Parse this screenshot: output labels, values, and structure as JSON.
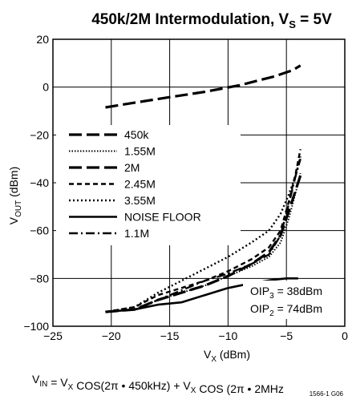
{
  "chart_data": {
    "type": "line",
    "title": {
      "main": "450k/2M Intermodulation, V",
      "sub": "S",
      "tail": " = 5V"
    },
    "xlabel": {
      "main": "V",
      "sub": "X",
      "tail": " (dBm)"
    },
    "ylabel": {
      "main": "V",
      "sub": "OUT",
      "tail": " (dBm)"
    },
    "xlim": [
      -25,
      0
    ],
    "ylim": [
      -100,
      20
    ],
    "xticks": [
      -25,
      -20,
      -15,
      -10,
      -5,
      0
    ],
    "yticks": [
      -100,
      -80,
      -60,
      -40,
      -20,
      0,
      20
    ],
    "xtick_labels": [
      "−25",
      "−20",
      "−15",
      "−10",
      "−5",
      "0"
    ],
    "ytick_labels": [
      "−100",
      "−80",
      "−60",
      "−40",
      "−20",
      "0",
      "20"
    ],
    "grid": true,
    "legend_position": "left",
    "series": [
      {
        "name": "450k",
        "dash": "long-dash",
        "width": 3.2,
        "x": [
          -20.5,
          -18,
          -15,
          -12,
          -9,
          -6,
          -4.5,
          -3.8
        ],
        "y": [
          -8.5,
          -6.5,
          -4.2,
          -2.0,
          0.8,
          4.5,
          7.0,
          9.0
        ]
      },
      {
        "name": "1.55M",
        "dash": "dotted",
        "width": 2,
        "x": [
          -20.5,
          -18,
          -16,
          -14,
          -12,
          -10,
          -8,
          -6.5,
          -5.5,
          -4.8,
          -4.2,
          -3.8
        ],
        "y": [
          -94,
          -93,
          -89,
          -86,
          -83,
          -79,
          -75,
          -71,
          -65,
          -55,
          -44,
          -36
        ]
      },
      {
        "name": "2M",
        "dash": "long-dash",
        "width": 3.2,
        "x": [
          -20.5,
          -18,
          -16,
          -14,
          -12,
          -10,
          -8,
          -6.5,
          -5.5,
          -4.8,
          -4.2,
          -3.8
        ],
        "y": [
          -94,
          -93,
          -89,
          -86,
          -83,
          -79,
          -74,
          -69,
          -62,
          -52,
          -43,
          -37
        ]
      },
      {
        "name": "2.45M",
        "dash": "dashed",
        "width": 2.4,
        "x": [
          -20.5,
          -18,
          -16,
          -14,
          -12,
          -10,
          -8,
          -6.5,
          -5.5,
          -4.8,
          -4.2,
          -3.8
        ],
        "y": [
          -94,
          -92,
          -87,
          -84,
          -81,
          -77,
          -72,
          -67,
          -60,
          -48,
          -36,
          -26
        ]
      },
      {
        "name": "3.55M",
        "dash": "dotted-fine",
        "width": 2.4,
        "x": [
          -20.5,
          -18,
          -16,
          -14,
          -12,
          -10,
          -8,
          -6.5,
          -5.5,
          -4.8,
          -4.2,
          -3.8
        ],
        "y": [
          -94,
          -92,
          -86,
          -81,
          -76,
          -71,
          -65,
          -60,
          -53,
          -45,
          -37,
          -29
        ]
      },
      {
        "name": "NOISE FLOOR",
        "dash": "solid",
        "width": 2.6,
        "x": [
          -20.5,
          -18,
          -16,
          -14,
          -12,
          -10,
          -8,
          -6,
          -5,
          -4
        ],
        "y": [
          -94,
          -93,
          -91,
          -90,
          -87,
          -84,
          -82,
          -80.5,
          -80,
          -80
        ]
      },
      {
        "name": "1.1M",
        "dash": "dash-dot",
        "width": 2.4,
        "x": [
          -20.5,
          -18,
          -16,
          -14,
          -12,
          -10,
          -8,
          -6.5,
          -5.5,
          -4.8,
          -4.2,
          -3.8
        ],
        "y": [
          -94,
          -93,
          -89,
          -85,
          -81,
          -78,
          -74,
          -70,
          -62,
          -49,
          -37,
          -30
        ]
      }
    ],
    "annotations": [
      {
        "main": "OIP",
        "sub": "3",
        "tail": " = 38dBm"
      },
      {
        "main": "OIP",
        "sub": "2",
        "tail": " = 74dBm"
      }
    ],
    "footer": {
      "text": "V _IN = V_X COS(2π • 450kHz) + V_X COS (2π • 2MHz",
      "parts": [
        {
          "t": "V"
        },
        {
          "sub": "IN"
        },
        {
          "t": " = V"
        },
        {
          "sub": "X"
        },
        {
          "t": " COS(2π • 450kHz) + V"
        },
        {
          "sub": "X"
        },
        {
          "t": " COS (2π • 2MHz"
        }
      ],
      "code": "1566-1 G06"
    }
  }
}
